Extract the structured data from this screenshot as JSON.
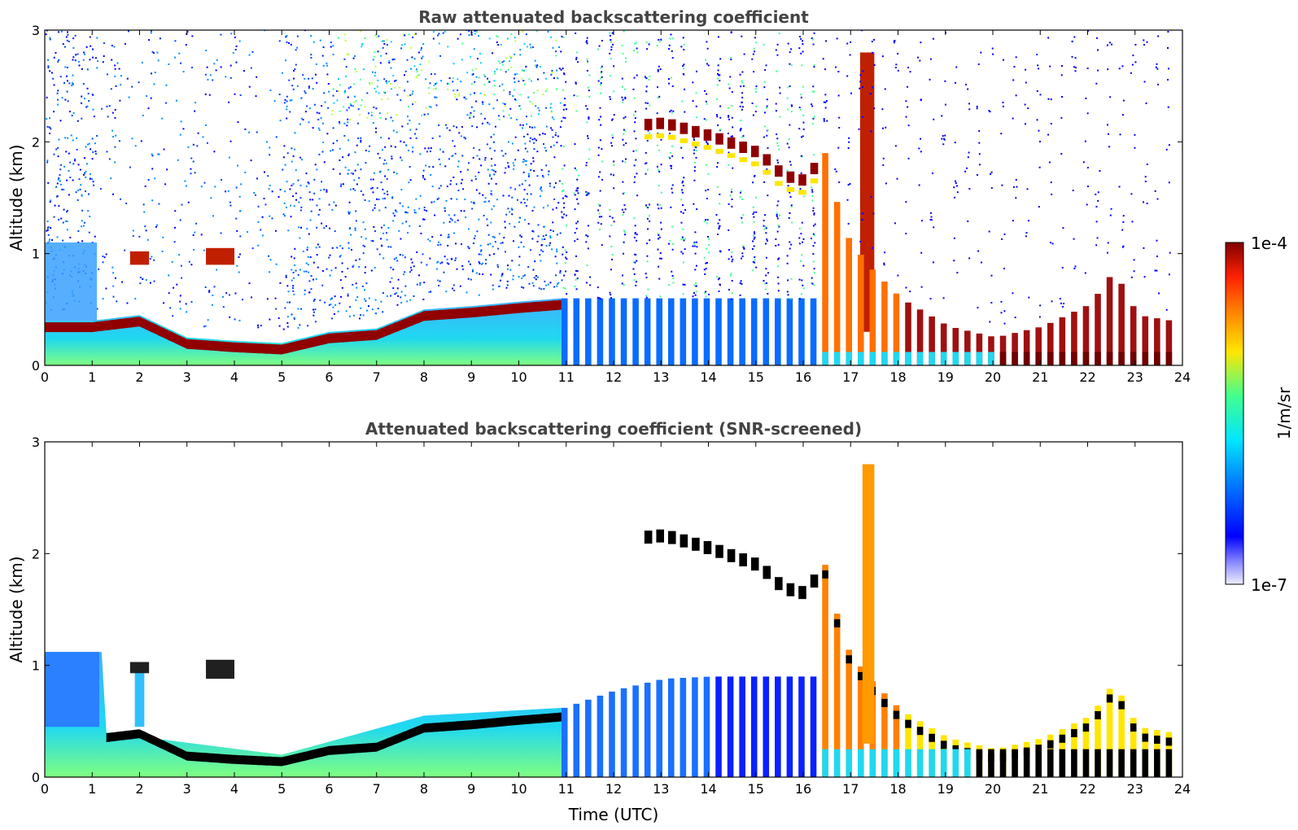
{
  "chart_data": [
    {
      "type": "heatmap",
      "title": "Raw attenuated backscattering coefficient",
      "xlabel": "",
      "ylabel": "Altitude (km)",
      "xlim": [
        0,
        24
      ],
      "ylim": [
        0,
        3
      ],
      "xticks": [
        "0",
        "1",
        "2",
        "3",
        "4",
        "5",
        "6",
        "7",
        "8",
        "9",
        "10",
        "11",
        "12",
        "13",
        "14",
        "15",
        "16",
        "17",
        "18",
        "19",
        "20",
        "21",
        "22",
        "23",
        "24"
      ],
      "yticks": [
        "0",
        "1",
        "2",
        "3"
      ],
      "continuous_scan_hours": [
        0,
        10.9
      ],
      "intermittent_profile_hours": [
        10.9,
        23.7
      ],
      "aerosol_layer_top_km": [
        {
          "x": 0.0,
          "y": 0.4
        },
        {
          "x": 1.0,
          "y": 0.4
        },
        {
          "x": 2.0,
          "y": 0.45
        },
        {
          "x": 3.0,
          "y": 0.25
        },
        {
          "x": 4.0,
          "y": 0.22
        },
        {
          "x": 5.0,
          "y": 0.2
        },
        {
          "x": 6.0,
          "y": 0.3
        },
        {
          "x": 7.0,
          "y": 0.33
        },
        {
          "x": 8.0,
          "y": 0.5
        },
        {
          "x": 9.0,
          "y": 0.53
        },
        {
          "x": 10.0,
          "y": 0.57
        },
        {
          "x": 10.9,
          "y": 0.6
        },
        {
          "x": 12.0,
          "y": 0.65
        }
      ],
      "elevated_layer_km": [
        {
          "x": 12.5,
          "y": 2.1
        },
        {
          "x": 13.0,
          "y": 2.12
        },
        {
          "x": 14.0,
          "y": 2.0
        },
        {
          "x": 15.0,
          "y": 1.85
        },
        {
          "x": 15.5,
          "y": 1.65
        },
        {
          "x": 16.0,
          "y": 1.6
        },
        {
          "x": 16.4,
          "y": 1.9
        },
        {
          "x": 16.8,
          "y": 1.2
        },
        {
          "x": 17.3,
          "y": 0.9
        },
        {
          "x": 18.0,
          "y": 0.6
        },
        {
          "x": 19.0,
          "y": 0.35
        },
        {
          "x": 20.0,
          "y": 0.25
        },
        {
          "x": 21.0,
          "y": 0.35
        },
        {
          "x": 22.0,
          "y": 0.55
        },
        {
          "x": 22.5,
          "y": 0.85
        },
        {
          "x": 23.0,
          "y": 0.45
        },
        {
          "x": 23.7,
          "y": 0.4
        }
      ],
      "cloud_patches": [
        {
          "x": [
            1.8,
            2.2
          ],
          "y": [
            0.9,
            1.02
          ]
        },
        {
          "x": [
            3.4,
            4.0
          ],
          "y": [
            0.9,
            1.05
          ]
        },
        {
          "x": [
            17.2,
            17.5
          ],
          "y": [
            0.3,
            2.8
          ]
        }
      ]
    },
    {
      "type": "heatmap",
      "title": "Attenuated backscattering coefficient (SNR-screened)",
      "xlabel": "Time (UTC)",
      "ylabel": "Altitude (km)",
      "xlim": [
        0,
        24
      ],
      "ylim": [
        0,
        3
      ],
      "xticks": [
        "0",
        "1",
        "2",
        "3",
        "4",
        "5",
        "6",
        "7",
        "8",
        "9",
        "10",
        "11",
        "12",
        "13",
        "14",
        "15",
        "16",
        "17",
        "18",
        "19",
        "20",
        "21",
        "22",
        "23",
        "24"
      ],
      "yticks": [
        "0",
        "1",
        "2",
        "3"
      ],
      "screened_top_km": [
        {
          "x": 0.0,
          "y": 1.12
        },
        {
          "x": 1.2,
          "y": 1.12
        },
        {
          "x": 1.3,
          "y": 0.4
        },
        {
          "x": 5.0,
          "y": 0.2
        },
        {
          "x": 8.0,
          "y": 0.55
        },
        {
          "x": 10.9,
          "y": 0.62
        },
        {
          "x": 12.0,
          "y": 0.78
        },
        {
          "x": 13.0,
          "y": 0.88
        },
        {
          "x": 14.0,
          "y": 0.9
        },
        {
          "x": 15.0,
          "y": 0.9
        },
        {
          "x": 16.3,
          "y": 0.9
        }
      ]
    }
  ],
  "colorbar": {
    "label": "1/m/sr",
    "max_label": "1e-4",
    "min_label": "1e-7",
    "scale": "log",
    "range": [
      1e-07,
      0.0001
    ],
    "colormap": [
      "#eeeeff",
      "#0000ff",
      "#0080ff",
      "#00e5ff",
      "#40ff90",
      "#ffe600",
      "#ff8000",
      "#ff2000",
      "#800000"
    ]
  }
}
